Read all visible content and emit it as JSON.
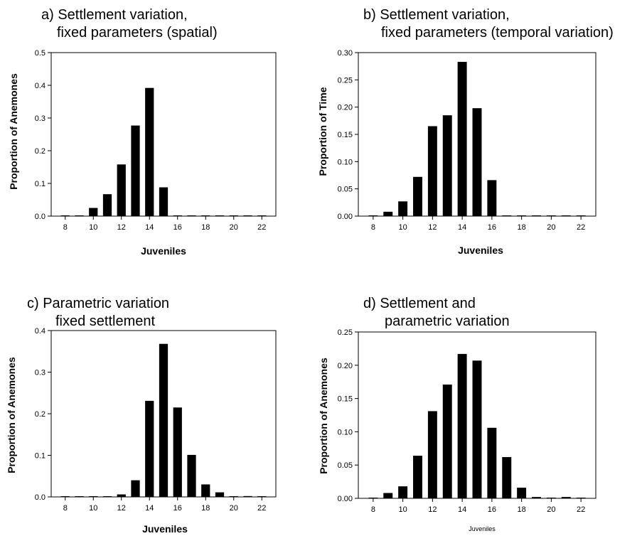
{
  "chart_data": [
    {
      "type": "bar",
      "title_line1": "a) Settlement variation,",
      "title_line2": "fixed parameters (spatial)",
      "xlabel": "Juveniles",
      "ylabel": "Proportion of Anemones",
      "xlim": [
        7,
        23
      ],
      "ylim": [
        0,
        0.5
      ],
      "xticks": [
        "8",
        "10",
        "12",
        "14",
        "16",
        "18",
        "20",
        "22"
      ],
      "yticks": [
        "0.0",
        "0.1",
        "0.2",
        "0.3",
        "0.4",
        "0.5"
      ],
      "x": [
        8,
        9,
        10,
        11,
        12,
        13,
        14,
        15,
        16,
        17,
        18,
        19,
        20,
        21,
        22
      ],
      "values": [
        0,
        0,
        0.025,
        0.067,
        0.158,
        0.277,
        0.392,
        0.088,
        0,
        0,
        0,
        0,
        0,
        0,
        0
      ]
    },
    {
      "type": "bar",
      "title_line1": "b)  Settlement variation,",
      "title_line2": "fixed parameters (temporal variation)",
      "xlabel": "Juveniles",
      "ylabel": "Proportion of Time",
      "xlim": [
        7,
        23
      ],
      "ylim": [
        0,
        0.3
      ],
      "xticks": [
        "8",
        "10",
        "12",
        "14",
        "16",
        "18",
        "20",
        "22"
      ],
      "yticks": [
        "0.00",
        "0.05",
        "0.10",
        "0.15",
        "0.20",
        "0.25",
        "0.30"
      ],
      "x": [
        8,
        9,
        10,
        11,
        12,
        13,
        14,
        15,
        16,
        17,
        18,
        19,
        20,
        21,
        22
      ],
      "values": [
        0,
        0.008,
        0.027,
        0.072,
        0.165,
        0.185,
        0.283,
        0.198,
        0.066,
        0,
        0,
        0,
        0,
        0,
        0
      ]
    },
    {
      "type": "bar",
      "title_line1": "c) Parametric variation",
      "title_line2": "fixed settlement",
      "xlabel": "Juveniles",
      "ylabel": "Proportion of Anemones",
      "xlim": [
        7,
        23
      ],
      "ylim": [
        0,
        0.4
      ],
      "xticks": [
        "8",
        "10",
        "12",
        "14",
        "16",
        "18",
        "20",
        "22"
      ],
      "yticks": [
        "0.0",
        "0.1",
        "0.2",
        "0.3",
        "0.4"
      ],
      "x": [
        8,
        9,
        10,
        11,
        12,
        13,
        14,
        15,
        16,
        17,
        18,
        19,
        20,
        21,
        22
      ],
      "values": [
        0,
        0,
        0,
        0,
        0.006,
        0.04,
        0.231,
        0.368,
        0.215,
        0.101,
        0.03,
        0.011,
        0,
        0.002,
        0
      ]
    },
    {
      "type": "bar",
      "title_line1": "d) Settlement and",
      "title_line2": "parametric variation",
      "xlabel": "Juveniles",
      "ylabel": "Proportion of Anemones",
      "xlim": [
        7,
        23
      ],
      "ylim": [
        0,
        0.25
      ],
      "xticks": [
        "8",
        "10",
        "12",
        "14",
        "16",
        "18",
        "20",
        "22"
      ],
      "yticks": [
        "0.00",
        "0.05",
        "0.10",
        "0.15",
        "0.20",
        "0.25"
      ],
      "x": [
        8,
        9,
        10,
        11,
        12,
        13,
        14,
        15,
        16,
        17,
        18,
        19,
        20,
        21,
        22
      ],
      "values": [
        0,
        0.008,
        0.018,
        0.064,
        0.131,
        0.171,
        0.217,
        0.207,
        0.106,
        0.062,
        0.016,
        0.002,
        0,
        0.002,
        0
      ]
    }
  ]
}
